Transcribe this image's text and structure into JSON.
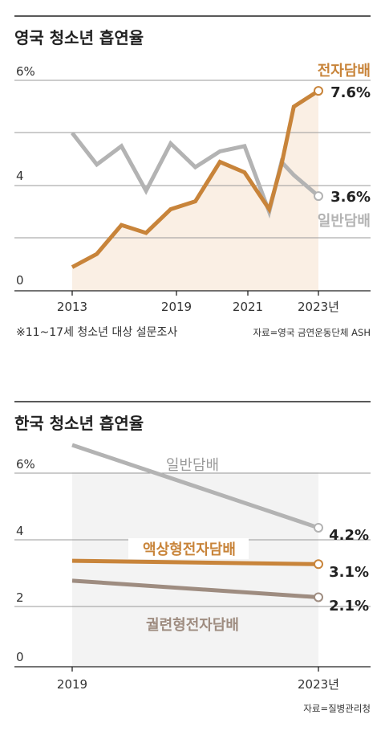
{
  "colors": {
    "ecig": "#c8843a",
    "general": "#b3b3b3",
    "heated": "#9e8c80",
    "area_fill": "#faefe4",
    "grid": "#9a9a9a"
  },
  "chart_data": [
    {
      "type": "line",
      "title": "영국 청소년 흡연율",
      "yticks": [
        "6%",
        "4",
        "0"
      ],
      "xticks": [
        "2013",
        "2019",
        "2021",
        "2023년"
      ],
      "ylim": [
        0,
        8
      ],
      "xlim": [
        2012.0,
        2025.5
      ],
      "grid": true,
      "note": "※11~17세 청소년 대상 설문조사",
      "source": "자료=영국 금연운동단체 ASH",
      "series": [
        {
          "name": "전자담배",
          "end_label": "7.6%",
          "x": [
            2013,
            2014,
            2015,
            2016,
            2017,
            2018,
            2019,
            2020,
            2021,
            2021.5,
            2022,
            2023
          ],
          "values": [
            0.9,
            1.4,
            2.5,
            2.2,
            3.1,
            3.4,
            4.9,
            4.5,
            3.1,
            4.8,
            7.0,
            7.6
          ]
        },
        {
          "name": "일반담배",
          "end_label": "3.6%",
          "x": [
            2013,
            2014,
            2015,
            2016,
            2017,
            2018,
            2019,
            2020,
            2021,
            2021.5,
            2022,
            2023
          ],
          "values": [
            6.0,
            4.8,
            5.5,
            3.8,
            5.6,
            4.7,
            5.3,
            5.5,
            3.0,
            4.9,
            4.4,
            3.6
          ]
        }
      ]
    },
    {
      "type": "line",
      "title": "한국 청소년 흡연율",
      "yticks": [
        "6%",
        "4",
        "2",
        "0"
      ],
      "xticks": [
        "2019",
        "2023년"
      ],
      "ylim": [
        0,
        6.4
      ],
      "grid": true,
      "source": "자료=질병관리청",
      "series": [
        {
          "name": "일반담배",
          "end_label": "4.2%",
          "x": [
            2019,
            2023
          ],
          "values": [
            6.7,
            4.2
          ]
        },
        {
          "name": "액상형전자담배",
          "end_label": "3.1%",
          "x": [
            2019,
            2023
          ],
          "values": [
            3.2,
            3.1
          ]
        },
        {
          "name": "궐련형전자담배",
          "end_label": "2.1%",
          "x": [
            2019,
            2023
          ],
          "values": [
            2.6,
            2.1
          ]
        }
      ]
    }
  ]
}
